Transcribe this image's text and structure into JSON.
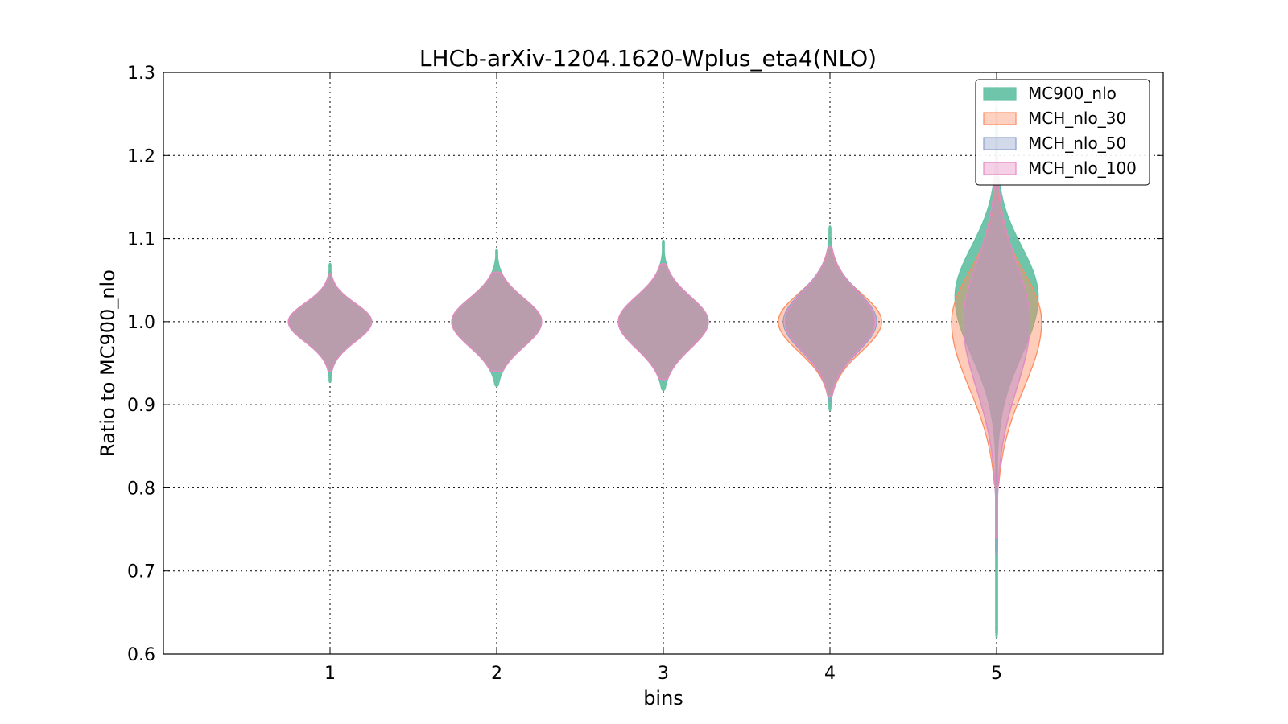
{
  "chart_data": {
    "type": "violin",
    "title": "LHCb-arXiv-1204.1620-Wplus_eta4(NLO)",
    "xlabel": "bins",
    "ylabel": "Ratio to MC900_nlo",
    "xlim": [
      0,
      6
    ],
    "ylim": [
      0.6,
      1.3
    ],
    "xticks": [
      1,
      2,
      3,
      4,
      5
    ],
    "yticks": [
      0.6,
      0.7,
      0.8,
      0.9,
      1.0,
      1.1,
      1.2,
      1.3
    ],
    "ytick_labels": [
      "0.6",
      "0.7",
      "0.8",
      "0.9",
      "1.0",
      "1.1",
      "1.2",
      "1.3"
    ],
    "grid": true,
    "legend_position": "top-right",
    "series": [
      {
        "name": "MC900_nlo",
        "color": "#66c2a5",
        "violins": [
          {
            "bin": 1,
            "center": 1.0,
            "half_width": 0.25,
            "max": 1.07,
            "min": 0.927,
            "upper_spread": 0.022,
            "lower_spread": 0.024
          },
          {
            "bin": 2,
            "center": 1.0,
            "half_width": 0.27,
            "max": 1.087,
            "min": 0.922,
            "upper_spread": 0.028,
            "lower_spread": 0.03
          },
          {
            "bin": 3,
            "center": 1.0,
            "half_width": 0.27,
            "max": 1.098,
            "min": 0.917,
            "upper_spread": 0.03,
            "lower_spread": 0.032
          },
          {
            "bin": 4,
            "center": 1.0,
            "half_width": 0.27,
            "max": 1.115,
            "min": 0.893,
            "upper_spread": 0.036,
            "lower_spread": 0.036
          },
          {
            "bin": 5,
            "center": 1.03,
            "half_width": 0.25,
            "max": 1.26,
            "min": 0.62,
            "upper_spread": 0.06,
            "lower_spread": 0.07
          }
        ]
      },
      {
        "name": "MCH_nlo_30",
        "color": "#fc8d62",
        "violins": [
          {
            "bin": 1,
            "center": 1.0,
            "half_width": 0.25,
            "max": 1.058,
            "min": 0.94,
            "upper_spread": 0.022,
            "lower_spread": 0.024
          },
          {
            "bin": 2,
            "center": 1.0,
            "half_width": 0.27,
            "max": 1.06,
            "min": 0.94,
            "upper_spread": 0.028,
            "lower_spread": 0.03
          },
          {
            "bin": 3,
            "center": 1.0,
            "half_width": 0.27,
            "max": 1.068,
            "min": 0.93,
            "upper_spread": 0.03,
            "lower_spread": 0.032
          },
          {
            "bin": 4,
            "center": 1.0,
            "half_width": 0.31,
            "max": 1.09,
            "min": 0.91,
            "upper_spread": 0.034,
            "lower_spread": 0.036
          },
          {
            "bin": 5,
            "center": 1.0,
            "half_width": 0.27,
            "max": 1.2,
            "min": 0.8,
            "upper_spread": 0.06,
            "lower_spread": 0.08
          }
        ]
      },
      {
        "name": "MCH_nlo_50",
        "color": "#8da0cb",
        "violins": [
          {
            "bin": 1,
            "center": 1.0,
            "half_width": 0.25,
            "max": 1.058,
            "min": 0.94,
            "upper_spread": 0.022,
            "lower_spread": 0.024
          },
          {
            "bin": 2,
            "center": 1.0,
            "half_width": 0.27,
            "max": 1.06,
            "min": 0.94,
            "upper_spread": 0.028,
            "lower_spread": 0.03
          },
          {
            "bin": 3,
            "center": 1.0,
            "half_width": 0.27,
            "max": 1.07,
            "min": 0.93,
            "upper_spread": 0.03,
            "lower_spread": 0.032
          },
          {
            "bin": 4,
            "center": 1.0,
            "half_width": 0.28,
            "max": 1.09,
            "min": 0.905,
            "upper_spread": 0.036,
            "lower_spread": 0.036
          },
          {
            "bin": 5,
            "center": 1.0,
            "half_width": 0.2,
            "max": 1.2,
            "min": 0.72,
            "upper_spread": 0.07,
            "lower_spread": 0.08
          }
        ]
      },
      {
        "name": "MCH_nlo_100",
        "color": "#e78ac3",
        "violins": [
          {
            "bin": 1,
            "center": 1.0,
            "half_width": 0.25,
            "max": 1.058,
            "min": 0.94,
            "upper_spread": 0.022,
            "lower_spread": 0.024
          },
          {
            "bin": 2,
            "center": 1.0,
            "half_width": 0.27,
            "max": 1.06,
            "min": 0.94,
            "upper_spread": 0.028,
            "lower_spread": 0.03
          },
          {
            "bin": 3,
            "center": 1.0,
            "half_width": 0.27,
            "max": 1.07,
            "min": 0.93,
            "upper_spread": 0.03,
            "lower_spread": 0.032
          },
          {
            "bin": 4,
            "center": 1.0,
            "half_width": 0.27,
            "max": 1.09,
            "min": 0.91,
            "upper_spread": 0.036,
            "lower_spread": 0.036
          },
          {
            "bin": 5,
            "center": 1.0,
            "half_width": 0.2,
            "max": 1.2,
            "min": 0.74,
            "upper_spread": 0.07,
            "lower_spread": 0.08
          }
        ]
      }
    ]
  }
}
